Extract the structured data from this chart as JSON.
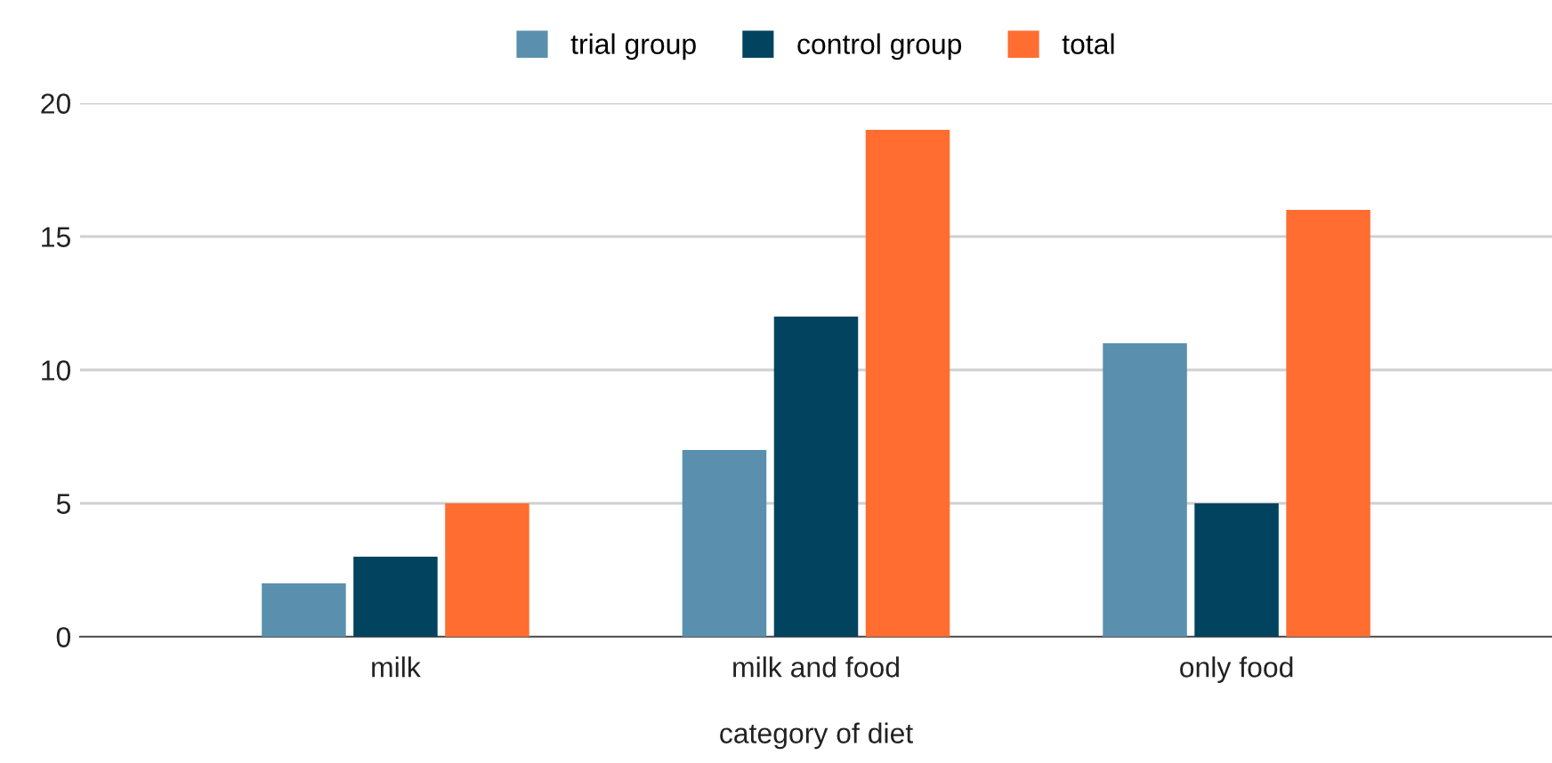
{
  "chart_data": {
    "type": "bar",
    "xlabel": "category of diet",
    "categories": [
      "milk",
      "milk and food",
      "only food"
    ],
    "series": [
      {
        "name": "trial group",
        "color": "#5a90ae",
        "values": [
          2,
          7,
          11
        ]
      },
      {
        "name": "control group",
        "color": "#02445f",
        "values": [
          3,
          12,
          5
        ]
      },
      {
        "name": "total",
        "color": "#ff6d31",
        "values": [
          5,
          19,
          16
        ]
      }
    ],
    "ylim": [
      0,
      20
    ],
    "yticks": [
      0,
      5,
      10,
      15,
      20
    ],
    "grid": "y",
    "legend": "top"
  }
}
